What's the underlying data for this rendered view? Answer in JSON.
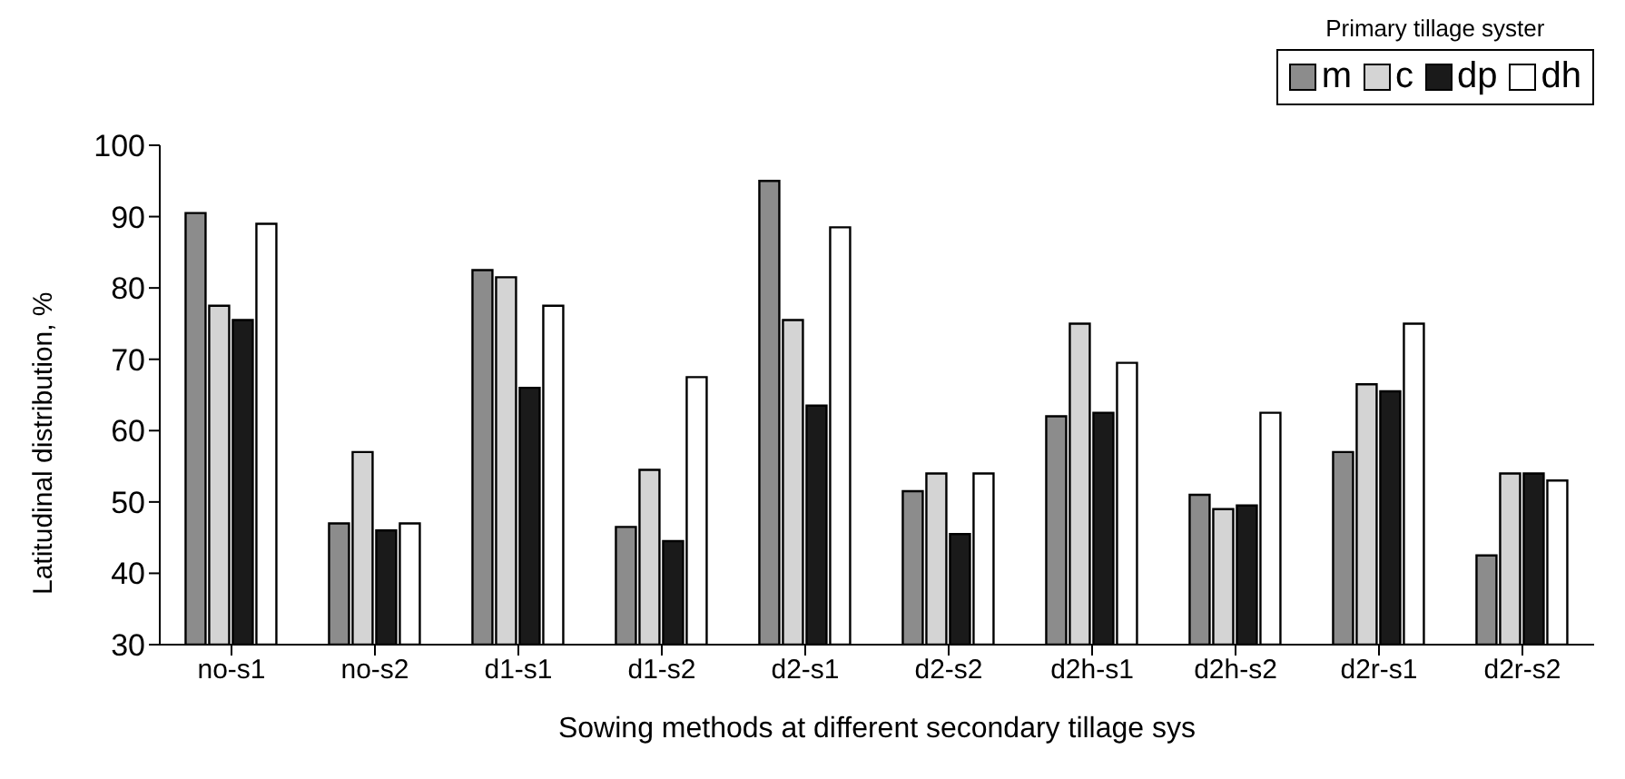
{
  "chart_data": {
    "type": "bar",
    "xlabel": "Sowing methods at different secondary tillage sys",
    "ylabel": "Latitudinal distribution, %",
    "legend_title": "Primary tillage syster",
    "legend": "top right",
    "grid": false,
    "categories": [
      "no-s1",
      "no-s2",
      "d1-s1",
      "d1-s2",
      "d2-s1",
      "d2-s2",
      "d2h-s1",
      "d2h-s2",
      "d2r-s1",
      "d2r-s2"
    ],
    "ylim": [
      30,
      100
    ],
    "yticks": [
      30,
      40,
      50,
      60,
      70,
      80,
      90,
      100
    ],
    "series": [
      {
        "name": "m",
        "color": "#8c8c8c",
        "values": [
          90.5,
          47,
          82.5,
          46.5,
          95,
          51.5,
          62,
          51,
          57,
          42.5
        ]
      },
      {
        "name": "c",
        "color": "#d4d4d4",
        "values": [
          77.5,
          57,
          81.5,
          54.5,
          75.5,
          54,
          75,
          49,
          66.5,
          54
        ]
      },
      {
        "name": "dp",
        "color": "#1a1a1a",
        "values": [
          75.5,
          46,
          66,
          44.5,
          63.5,
          45.5,
          62.5,
          49.5,
          65.5,
          54
        ]
      },
      {
        "name": "dh",
        "color": "#ffffff",
        "values": [
          89,
          47,
          77.5,
          67.5,
          88.5,
          54,
          69.5,
          62.5,
          75,
          53
        ]
      }
    ]
  }
}
